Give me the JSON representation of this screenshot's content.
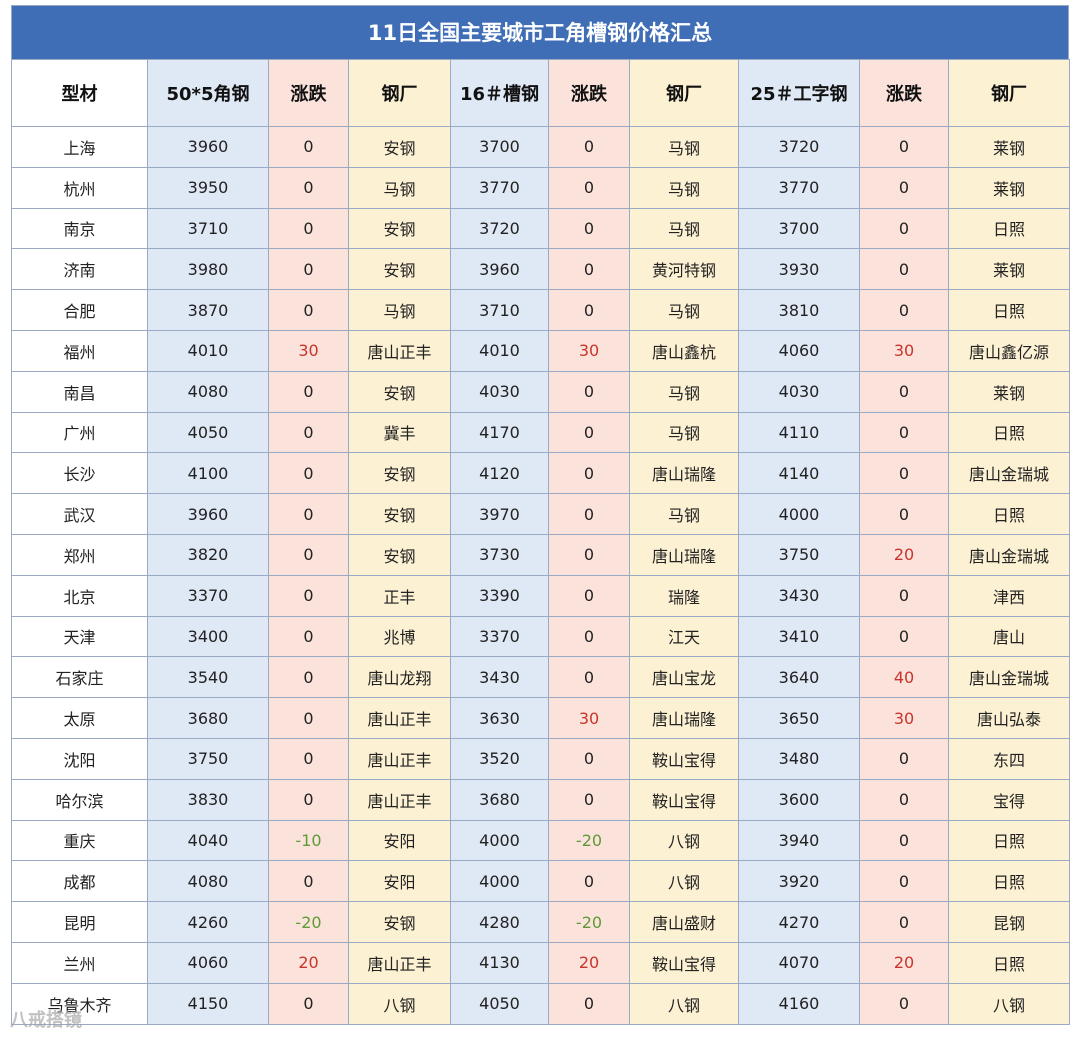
{
  "title": "11日全国主要城市工角槽钢价格汇总",
  "headers": [
    "型材",
    "50*5角钢",
    "涨跌",
    "钢厂",
    "16＃槽钢",
    "涨跌",
    "钢厂",
    "25＃工字钢",
    "涨跌",
    "钢厂"
  ],
  "rows": [
    {
      "city": "上海",
      "p1": "3960",
      "c1": "0",
      "m1": "安钢",
      "p2": "3700",
      "c2": "0",
      "m2": "马钢",
      "p3": "3720",
      "c3": "0",
      "m3": "莱钢"
    },
    {
      "city": "杭州",
      "p1": "3950",
      "c1": "0",
      "m1": "马钢",
      "p2": "3770",
      "c2": "0",
      "m2": "马钢",
      "p3": "3770",
      "c3": "0",
      "m3": "莱钢"
    },
    {
      "city": "南京",
      "p1": "3710",
      "c1": "0",
      "m1": "安钢",
      "p2": "3720",
      "c2": "0",
      "m2": "马钢",
      "p3": "3700",
      "c3": "0",
      "m3": "日照"
    },
    {
      "city": "济南",
      "p1": "3980",
      "c1": "0",
      "m1": "安钢",
      "p2": "3960",
      "c2": "0",
      "m2": "黄河特钢",
      "p3": "3930",
      "c3": "0",
      "m3": "莱钢"
    },
    {
      "city": "合肥",
      "p1": "3870",
      "c1": "0",
      "m1": "马钢",
      "p2": "3710",
      "c2": "0",
      "m2": "马钢",
      "p3": "3810",
      "c3": "0",
      "m3": "日照"
    },
    {
      "city": "福州",
      "p1": "4010",
      "c1": "30",
      "m1": "唐山正丰",
      "p2": "4010",
      "c2": "30",
      "m2": "唐山鑫杭",
      "p3": "4060",
      "c3": "30",
      "m3": "唐山鑫亿源"
    },
    {
      "city": "南昌",
      "p1": "4080",
      "c1": "0",
      "m1": "安钢",
      "p2": "4030",
      "c2": "0",
      "m2": "马钢",
      "p3": "4030",
      "c3": "0",
      "m3": "莱钢"
    },
    {
      "city": "广州",
      "p1": "4050",
      "c1": "0",
      "m1": "冀丰",
      "p2": "4170",
      "c2": "0",
      "m2": "马钢",
      "p3": "4110",
      "c3": "0",
      "m3": "日照"
    },
    {
      "city": "长沙",
      "p1": "4100",
      "c1": "0",
      "m1": "安钢",
      "p2": "4120",
      "c2": "0",
      "m2": "唐山瑞隆",
      "p3": "4140",
      "c3": "0",
      "m3": "唐山金瑞城"
    },
    {
      "city": "武汉",
      "p1": "3960",
      "c1": "0",
      "m1": "安钢",
      "p2": "3970",
      "c2": "0",
      "m2": "马钢",
      "p3": "4000",
      "c3": "0",
      "m3": "日照"
    },
    {
      "city": "郑州",
      "p1": "3820",
      "c1": "0",
      "m1": "安钢",
      "p2": "3730",
      "c2": "0",
      "m2": "唐山瑞隆",
      "p3": "3750",
      "c3": "20",
      "m3": "唐山金瑞城"
    },
    {
      "city": "北京",
      "p1": "3370",
      "c1": "0",
      "m1": "正丰",
      "p2": "3390",
      "c2": "0",
      "m2": "瑞隆",
      "p3": "3430",
      "c3": "0",
      "m3": "津西"
    },
    {
      "city": "天津",
      "p1": "3400",
      "c1": "0",
      "m1": "兆博",
      "p2": "3370",
      "c2": "0",
      "m2": "江天",
      "p3": "3410",
      "c3": "0",
      "m3": "唐山"
    },
    {
      "city": "石家庄",
      "p1": "3540",
      "c1": "0",
      "m1": "唐山龙翔",
      "p2": "3430",
      "c2": "0",
      "m2": "唐山宝龙",
      "p3": "3640",
      "c3": "40",
      "m3": "唐山金瑞城"
    },
    {
      "city": "太原",
      "p1": "3680",
      "c1": "0",
      "m1": "唐山正丰",
      "p2": "3630",
      "c2": "30",
      "m2": "唐山瑞隆",
      "p3": "3650",
      "c3": "30",
      "m3": "唐山弘泰"
    },
    {
      "city": "沈阳",
      "p1": "3750",
      "c1": "0",
      "m1": "唐山正丰",
      "p2": "3520",
      "c2": "0",
      "m2": "鞍山宝得",
      "p3": "3480",
      "c3": "0",
      "m3": "东四"
    },
    {
      "city": "哈尔滨",
      "p1": "3830",
      "c1": "0",
      "m1": "唐山正丰",
      "p2": "3680",
      "c2": "0",
      "m2": "鞍山宝得",
      "p3": "3600",
      "c3": "0",
      "m3": "宝得"
    },
    {
      "city": "重庆",
      "p1": "4040",
      "c1": "-10",
      "m1": "安阳",
      "p2": "4000",
      "c2": "-20",
      "m2": "八钢",
      "p3": "3940",
      "c3": "0",
      "m3": "日照"
    },
    {
      "city": "成都",
      "p1": "4080",
      "c1": "0",
      "m1": "安阳",
      "p2": "4000",
      "c2": "0",
      "m2": "八钢",
      "p3": "3920",
      "c3": "0",
      "m3": "日照"
    },
    {
      "city": "昆明",
      "p1": "4260",
      "c1": "-20",
      "m1": "安钢",
      "p2": "4280",
      "c2": "-20",
      "m2": "唐山盛财",
      "p3": "4270",
      "c3": "0",
      "m3": "昆钢"
    },
    {
      "city": "兰州",
      "p1": "4060",
      "c1": "20",
      "m1": "唐山正丰",
      "p2": "4130",
      "c2": "20",
      "m2": "鞍山宝得",
      "p3": "4070",
      "c3": "20",
      "m3": "日照"
    },
    {
      "city": "乌鲁木齐",
      "p1": "4150",
      "c1": "0",
      "m1": "八钢",
      "p2": "4050",
      "c2": "0",
      "m2": "八钢",
      "p3": "4160",
      "c3": "0",
      "m3": "八钢"
    }
  ],
  "watermark": "八戒搭镜"
}
